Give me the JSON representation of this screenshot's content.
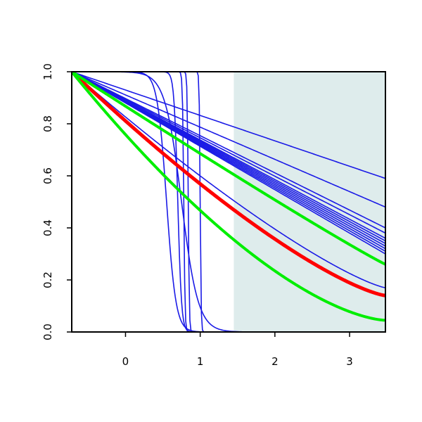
{
  "chart_data": {
    "type": "line",
    "title": "",
    "xlabel": "",
    "ylabel": "",
    "xlim": [
      -0.72,
      3.48
    ],
    "ylim": [
      0,
      1
    ],
    "x_ticks": [
      0,
      1,
      2,
      3
    ],
    "x_tick_labels": [
      "0",
      "1",
      "2",
      "3"
    ],
    "y_ticks": [
      0,
      0.2,
      0.4,
      0.6,
      0.8,
      1
    ],
    "y_tick_labels": [
      "0.0",
      "0.2",
      "0.4",
      "0.6",
      "0.8",
      "1.0"
    ],
    "grid": false,
    "legend": "none",
    "shaded_region": {
      "x_start": 1.45,
      "x_end": 3.48,
      "color": "#deecec"
    },
    "colors": {
      "sigmoid": "#1a1ae6",
      "smooth_blue": "#1a1ae6",
      "red": "#ff0000",
      "green": "#00ee00",
      "axis": "#000000"
    },
    "series": [
      {
        "kind": "sigmoid",
        "midpoint": 0.55,
        "steepness": 16,
        "width": 1.6,
        "color_key": "sigmoid"
      },
      {
        "kind": "sigmoid",
        "midpoint": 0.7,
        "steepness": 40,
        "width": 1.6,
        "color_key": "sigmoid"
      },
      {
        "kind": "sigmoid",
        "midpoint": 0.78,
        "steepness": 120,
        "width": 1.6,
        "color_key": "sigmoid"
      },
      {
        "kind": "sigmoid",
        "midpoint": 0.84,
        "steepness": 140,
        "width": 1.6,
        "color_key": "sigmoid"
      },
      {
        "kind": "sigmoid",
        "midpoint": 1.0,
        "steepness": 160,
        "width": 1.6,
        "color_key": "sigmoid"
      },
      {
        "kind": "sigmoid",
        "midpoint": 0.75,
        "steepness": 9,
        "width": 1.6,
        "color_key": "sigmoid"
      },
      {
        "kind": "power",
        "x": [
          -0.72,
          3.48
        ],
        "y": [
          1,
          0.17
        ],
        "shape": 1.25,
        "width": 1.6,
        "color_key": "smooth_blue"
      },
      {
        "kind": "power",
        "x": [
          -0.72,
          3.48
        ],
        "y": [
          1,
          0.59
        ],
        "shape": 1.0,
        "width": 1.6,
        "color_key": "smooth_blue"
      },
      {
        "kind": "power",
        "x": [
          -0.72,
          3.48
        ],
        "y": [
          1,
          0.48
        ],
        "shape": 1.0,
        "width": 1.6,
        "color_key": "smooth_blue"
      },
      {
        "kind": "power",
        "x": [
          -0.72,
          3.48
        ],
        "y": [
          1,
          0.4
        ],
        "shape": 1.0,
        "width": 1.6,
        "color_key": "smooth_blue"
      },
      {
        "kind": "power",
        "x": [
          -0.72,
          3.48
        ],
        "y": [
          1,
          0.38
        ],
        "shape": 1.0,
        "width": 1.6,
        "color_key": "smooth_blue"
      },
      {
        "kind": "power",
        "x": [
          -0.72,
          3.48
        ],
        "y": [
          1,
          0.36
        ],
        "shape": 1.0,
        "width": 1.6,
        "color_key": "smooth_blue"
      },
      {
        "kind": "power",
        "x": [
          -0.72,
          3.48
        ],
        "y": [
          1,
          0.35
        ],
        "shape": 1.0,
        "width": 1.6,
        "color_key": "smooth_blue"
      },
      {
        "kind": "power",
        "x": [
          -0.72,
          3.48
        ],
        "y": [
          1,
          0.34
        ],
        "shape": 1.0,
        "width": 1.6,
        "color_key": "smooth_blue"
      },
      {
        "kind": "power",
        "x": [
          -0.72,
          3.48
        ],
        "y": [
          1,
          0.33
        ],
        "shape": 1.0,
        "width": 1.6,
        "color_key": "smooth_blue"
      },
      {
        "kind": "power",
        "x": [
          -0.72,
          3.48
        ],
        "y": [
          1,
          0.32
        ],
        "shape": 1.0,
        "width": 1.6,
        "color_key": "smooth_blue"
      },
      {
        "kind": "power",
        "x": [
          -0.72,
          3.48
        ],
        "y": [
          1,
          0.31
        ],
        "shape": 1.0,
        "width": 1.6,
        "color_key": "smooth_blue"
      },
      {
        "kind": "power",
        "x": [
          -0.72,
          3.48
        ],
        "y": [
          1,
          0.3
        ],
        "shape": 1.0,
        "width": 1.6,
        "color_key": "smooth_blue"
      },
      {
        "kind": "power",
        "x": [
          -0.72,
          3.48
        ],
        "y": [
          1,
          0.14
        ],
        "shape": 1.32,
        "width": 5,
        "color_key": "red"
      },
      {
        "kind": "power",
        "x": [
          -0.72,
          3.48
        ],
        "y": [
          1,
          0.26
        ],
        "shape": 1.05,
        "width": 4,
        "color_key": "green"
      },
      {
        "kind": "power",
        "x": [
          -0.72,
          3.48
        ],
        "y": [
          1,
          0.045
        ],
        "shape": 1.55,
        "width": 4,
        "color_key": "green"
      }
    ]
  }
}
